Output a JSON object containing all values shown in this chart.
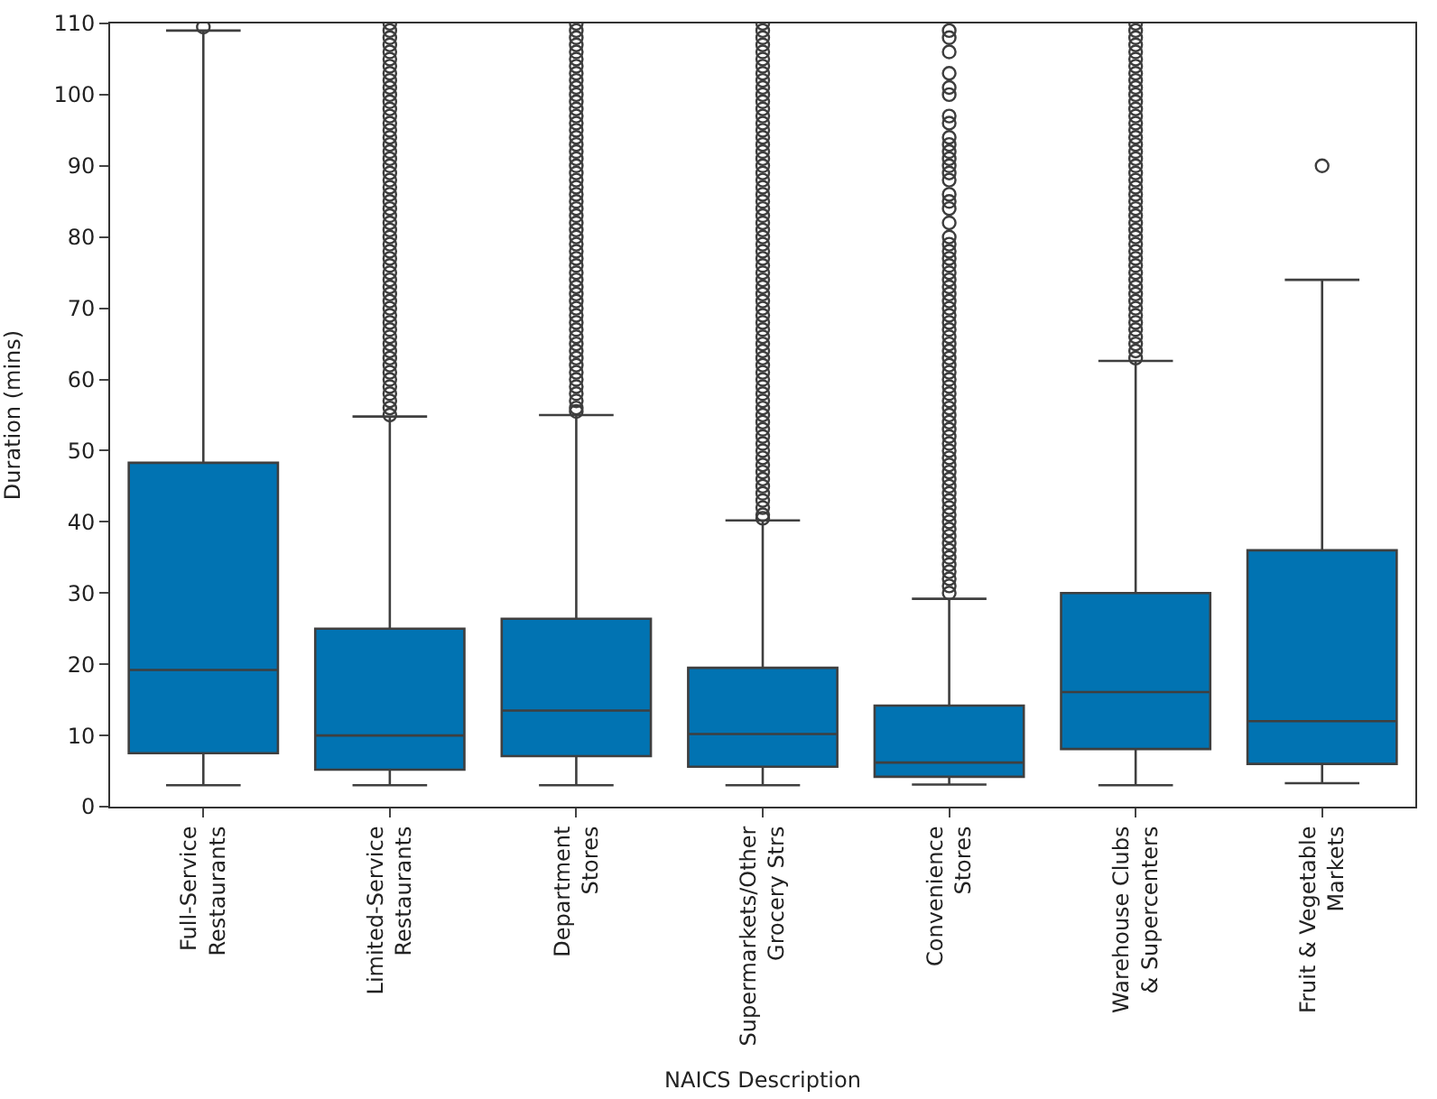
{
  "chart_data": {
    "type": "box",
    "xlabel": "NAICS Description",
    "ylabel": "Duration (mins)",
    "categories": [
      "Full-Service\nRestaurants",
      "Limited-Service\nRestaurants",
      "Department\nStores",
      "Supermarkets/Other\nGrocery Strs",
      "Convenience\nStores",
      "Warehouse Clubs\n& Supercenters",
      "Fruit & Vegetable\nMarkets"
    ],
    "color": "#0173b2",
    "boxes": [
      {
        "low": 3,
        "q1": 7.5,
        "median": 19.2,
        "q3": 48.3,
        "high": 109,
        "outliers": [
          109.5
        ]
      },
      {
        "low": 3,
        "q1": 5.2,
        "median": 10,
        "q3": 25,
        "high": 54.8,
        "outliers": [
          55,
          56,
          57,
          58,
          59,
          60,
          61,
          62,
          63,
          64,
          65,
          66,
          67,
          68,
          69,
          70,
          71,
          72,
          73,
          74,
          75,
          76,
          77,
          78,
          79,
          80,
          81,
          82,
          83,
          84,
          85,
          86,
          87,
          88,
          89,
          90,
          91,
          92,
          93,
          94,
          95,
          96,
          97,
          98,
          99,
          100,
          101,
          102,
          103,
          104,
          105,
          106,
          107,
          108,
          109,
          110
        ]
      },
      {
        "low": 3,
        "q1": 7.1,
        "median": 13.5,
        "q3": 26.4,
        "high": 55,
        "outliers": [
          55.5,
          56,
          57,
          58,
          59,
          60,
          61,
          62,
          63,
          64,
          65,
          66,
          67,
          68,
          69,
          70,
          71,
          72,
          73,
          74,
          75,
          76,
          77,
          78,
          79,
          80,
          81,
          82,
          83,
          84,
          85,
          86,
          87,
          88,
          89,
          90,
          91,
          92,
          93,
          94,
          95,
          96,
          97,
          98,
          99,
          100,
          101,
          102,
          103,
          104,
          105,
          106,
          107,
          108,
          109,
          110
        ]
      },
      {
        "low": 3,
        "q1": 5.6,
        "median": 10.2,
        "q3": 19.5,
        "high": 40.2,
        "outliers": [
          40.5,
          41,
          42,
          43,
          44,
          45,
          46,
          47,
          48,
          49,
          50,
          51,
          52,
          53,
          54,
          55,
          56,
          57,
          58,
          59,
          60,
          61,
          62,
          63,
          64,
          65,
          66,
          67,
          68,
          69,
          70,
          71,
          72,
          73,
          74,
          75,
          76,
          77,
          78,
          79,
          80,
          81,
          82,
          83,
          84,
          85,
          86,
          87,
          88,
          89,
          90,
          91,
          92,
          93,
          94,
          95,
          96,
          97,
          98,
          99,
          100,
          101,
          102,
          103,
          104,
          105,
          106,
          107,
          108,
          109,
          110
        ]
      },
      {
        "low": 3.1,
        "q1": 4.2,
        "median": 6.2,
        "q3": 14.2,
        "high": 29.2,
        "outliers": [
          30,
          31,
          32,
          33,
          34,
          35,
          36,
          37,
          38,
          39,
          40,
          41,
          42,
          43,
          44,
          45,
          46,
          47,
          48,
          49,
          50,
          51,
          52,
          53,
          54,
          55,
          56,
          57,
          58,
          59,
          60,
          61,
          62,
          63,
          64,
          65,
          66,
          67,
          68,
          69,
          70,
          71,
          72,
          73,
          74,
          75,
          76,
          77,
          78,
          79,
          80,
          82,
          84,
          85,
          86,
          88,
          89,
          90,
          91,
          92,
          93,
          94,
          96,
          97,
          100,
          101,
          103,
          106,
          108,
          109
        ]
      },
      {
        "low": 3,
        "q1": 8.1,
        "median": 16.1,
        "q3": 30,
        "high": 62.6,
        "outliers": [
          63,
          64,
          65,
          66,
          67,
          68,
          69,
          70,
          71,
          72,
          73,
          74,
          75,
          76,
          77,
          78,
          79,
          80,
          81,
          82,
          83,
          84,
          85,
          86,
          87,
          88,
          89,
          90,
          91,
          92,
          93,
          94,
          95,
          96,
          97,
          98,
          99,
          100,
          101,
          102,
          103,
          104,
          105,
          106,
          107,
          108,
          109,
          110
        ]
      },
      {
        "low": 3.3,
        "q1": 6,
        "median": 12,
        "q3": 36,
        "high": 74,
        "outliers": [
          90
        ]
      }
    ],
    "ylim": [
      0,
      110
    ],
    "yticks": [
      0,
      10,
      20,
      30,
      40,
      50,
      60,
      70,
      80,
      90,
      100,
      110
    ],
    "marker": "circle"
  }
}
